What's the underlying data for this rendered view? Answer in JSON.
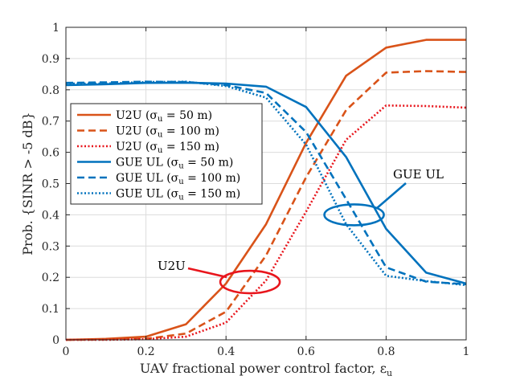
{
  "chart_data": {
    "type": "line",
    "xlabel": "UAV fractional power control factor, ε",
    "xlabel_sub": "u",
    "ylabel": "Prob. {SINR > -5 dB}",
    "xlim": [
      0,
      1
    ],
    "ylim": [
      0,
      1
    ],
    "x_ticks": [
      "0",
      "0.2",
      "0.4",
      "0.6",
      "0.8",
      "1"
    ],
    "y_ticks": [
      "0",
      "0.1",
      "0.2",
      "0.3",
      "0.4",
      "0.5",
      "0.6",
      "0.7",
      "0.8",
      "0.9",
      "1"
    ],
    "grid": true,
    "legend_position": "middle-left",
    "x": [
      0,
      0.1,
      0.2,
      0.3,
      0.4,
      0.5,
      0.6,
      0.7,
      0.8,
      0.9,
      1.0
    ],
    "series": [
      {
        "name": "U2U (σu = 50 m)",
        "name_prefix": "U2U (σ",
        "name_sub": "u",
        "name_suffix": " = 50 m)",
        "color": "#D95319",
        "dash": "solid",
        "values": [
          0.0,
          0.003,
          0.01,
          0.05,
          0.18,
          0.37,
          0.63,
          0.845,
          0.935,
          0.96,
          0.96
        ]
      },
      {
        "name": "U2U (σu = 100 m)",
        "name_prefix": "U2U (σ",
        "name_sub": "u",
        "name_suffix": " = 100 m)",
        "color": "#D95319",
        "dash": "dashed",
        "values": [
          0.0,
          0.001,
          0.003,
          0.02,
          0.09,
          0.27,
          0.52,
          0.735,
          0.855,
          0.86,
          0.857
        ]
      },
      {
        "name": "U2U (σu = 150 m)",
        "name_prefix": "U2U (σ",
        "name_sub": "u",
        "name_suffix": " = 150 m)",
        "color": "#E8151C",
        "dash": "dotted",
        "values": [
          0.0,
          0.0,
          0.002,
          0.01,
          0.055,
          0.19,
          0.41,
          0.64,
          0.75,
          0.748,
          0.743
        ]
      },
      {
        "name": "GUE UL (σu = 50 m)",
        "name_prefix": "GUE UL (σ",
        "name_sub": "u",
        "name_suffix": " = 50 m)",
        "color": "#0072BD",
        "dash": "solid",
        "values": [
          0.815,
          0.818,
          0.822,
          0.823,
          0.82,
          0.81,
          0.745,
          0.585,
          0.355,
          0.215,
          0.18
        ]
      },
      {
        "name": "GUE UL (σu = 100 m)",
        "name_prefix": "GUE UL (σ",
        "name_sub": "u",
        "name_suffix": " = 100 m)",
        "color": "#0072BD",
        "dash": "dashed",
        "values": [
          0.822,
          0.824,
          0.826,
          0.825,
          0.815,
          0.79,
          0.665,
          0.45,
          0.232,
          0.186,
          0.178
        ]
      },
      {
        "name": "GUE UL (σu = 150 m)",
        "name_prefix": "GUE UL (σ",
        "name_sub": "u",
        "name_suffix": " = 150 m)",
        "color": "#0072BD",
        "dash": "dotted",
        "values": [
          0.82,
          0.82,
          0.825,
          0.826,
          0.812,
          0.775,
          0.625,
          0.37,
          0.205,
          0.188,
          0.175
        ]
      }
    ],
    "annotations": [
      {
        "text": "U2U",
        "color": "#E8151C",
        "ellipse_center": [
          0.46,
          0.185
        ]
      },
      {
        "text": "GUE UL",
        "color": "#0072BD",
        "ellipse_center": [
          0.72,
          0.4
        ]
      }
    ]
  }
}
